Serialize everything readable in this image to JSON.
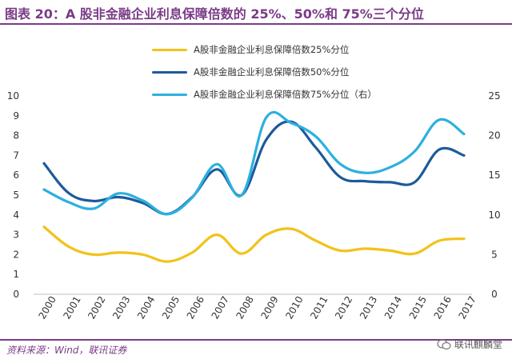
{
  "header": {
    "title": "图表 20：A 股非金融企业利息保障倍数的 25%、50%和 75%三个分位"
  },
  "footer": {
    "source": "资料来源：Wind，联讯证券",
    "watermark": "联讯麒麟堂"
  },
  "chart_data": {
    "type": "line",
    "x": [
      "2000",
      "2001",
      "2002",
      "2003",
      "2004",
      "2005",
      "2006",
      "2007",
      "2008",
      "2009",
      "2010",
      "2011",
      "2012",
      "2013",
      "2014",
      "2015",
      "2016",
      "2017"
    ],
    "left_axis": {
      "ylim": [
        0,
        10
      ],
      "ticks": [
        "0",
        "1",
        "2",
        "3",
        "4",
        "5",
        "6",
        "7",
        "8",
        "9",
        "10"
      ]
    },
    "right_axis": {
      "ylim": [
        0,
        25
      ],
      "ticks": [
        "0",
        "5",
        "10",
        "15",
        "20",
        "25"
      ]
    },
    "grid": false,
    "legend_position": "top-center",
    "series": [
      {
        "name": "A股非金融企业利息保障倍数25%分位",
        "axis": "left",
        "color": "#f2c21a",
        "values": [
          3.4,
          2.4,
          2.0,
          2.1,
          2.0,
          1.65,
          2.1,
          3.0,
          2.05,
          3.0,
          3.3,
          2.7,
          2.2,
          2.3,
          2.2,
          2.05,
          2.7,
          2.8
        ]
      },
      {
        "name": "A股非金融企业利息保障倍数50%分位",
        "axis": "left",
        "color": "#1c5b9b",
        "values": [
          6.6,
          5.1,
          4.7,
          4.9,
          4.6,
          4.05,
          4.9,
          6.3,
          5.0,
          7.8,
          8.7,
          7.4,
          5.9,
          5.7,
          5.65,
          5.65,
          7.3,
          7.0
        ]
      },
      {
        "name": "A股非金融企业利息保障倍数75%分位（右）",
        "axis": "right",
        "color": "#2cb0df",
        "values": [
          13.2,
          11.6,
          10.8,
          12.7,
          11.8,
          10.1,
          12.2,
          16.4,
          12.5,
          22.3,
          21.6,
          19.9,
          16.4,
          15.3,
          16.0,
          18.0,
          22.0,
          20.2
        ]
      }
    ]
  }
}
